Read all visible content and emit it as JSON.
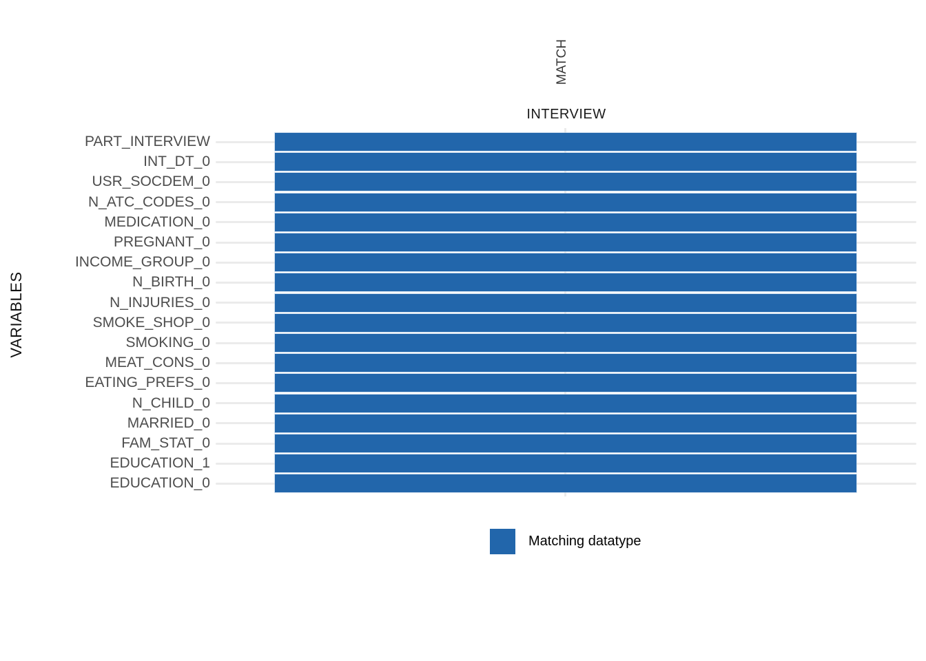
{
  "colors": {
    "bar": "#2266AB",
    "gridline": "#EBEBEB",
    "tick_label": "#4D4D4D",
    "axis_title": "#111111",
    "strip_text": "#3A3A3A",
    "background": "#FFFFFF",
    "legend_text": "#000000"
  },
  "chart_data": {
    "type": "heatmap",
    "title": "",
    "xlabel": "MATCH",
    "ylabel": "VARIABLES",
    "columns": [
      "INTERVIEW"
    ],
    "rows": [
      "PART_INTERVIEW",
      "INT_DT_0",
      "USR_SOCDEM_0",
      "N_ATC_CODES_0",
      "MEDICATION_0",
      "PREGNANT_0",
      "INCOME_GROUP_0",
      "N_BIRTH_0",
      "N_INJURIES_0",
      "SMOKE_SHOP_0",
      "SMOKING_0",
      "MEAT_CONS_0",
      "EATING_PREFS_0",
      "N_CHILD_0",
      "MARRIED_0",
      "FAM_STAT_0",
      "EDUCATION_1",
      "EDUCATION_0"
    ],
    "values": [
      1,
      1,
      1,
      1,
      1,
      1,
      1,
      1,
      1,
      1,
      1,
      1,
      1,
      1,
      1,
      1,
      1,
      1
    ],
    "value_legend": {
      "1": "Matching datatype"
    },
    "grid": true,
    "legend": {
      "position": "bottom",
      "items": [
        {
          "label": "Matching datatype",
          "color": "#2266AB"
        }
      ]
    }
  }
}
